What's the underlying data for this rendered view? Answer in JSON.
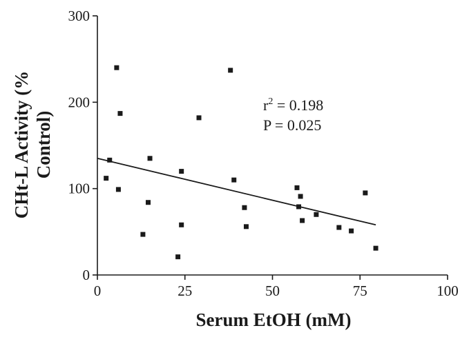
{
  "chart_data": {
    "type": "scatter",
    "xlabel": "Serum EtOH (mM)",
    "ylabel_lines": [
      "CHt-L Activity (%",
      "Control)"
    ],
    "xlim": [
      0,
      100
    ],
    "ylim": [
      0,
      300
    ],
    "xticks": [
      0,
      25,
      50,
      75,
      100
    ],
    "yticks": [
      0,
      100,
      200,
      300
    ],
    "grid": false,
    "series": [
      {
        "points": [
          [
            2.5,
            112
          ],
          [
            3.5,
            133
          ],
          [
            5.5,
            240
          ],
          [
            6.0,
            99
          ],
          [
            6.5,
            187
          ],
          [
            13.0,
            47
          ],
          [
            14.5,
            84
          ],
          [
            15.0,
            135
          ],
          [
            23.0,
            21
          ],
          [
            24.0,
            58
          ],
          [
            24.0,
            120
          ],
          [
            29.0,
            182
          ],
          [
            38.0,
            237
          ],
          [
            39.0,
            110
          ],
          [
            42.0,
            78
          ],
          [
            42.5,
            56
          ],
          [
            57.0,
            101
          ],
          [
            57.5,
            79
          ],
          [
            58.0,
            91
          ],
          [
            58.5,
            63
          ],
          [
            62.5,
            70
          ],
          [
            69.0,
            55
          ],
          [
            72.5,
            51
          ],
          [
            76.5,
            95
          ],
          [
            79.5,
            31
          ]
        ]
      }
    ],
    "trendline": {
      "x": [
        0,
        79.5
      ],
      "y": [
        135,
        58
      ]
    },
    "annotation": {
      "r_label": "r",
      "r_sup": "2",
      "r_value": " = 0.198",
      "p_text": "P = 0.025"
    },
    "colors": {
      "marks": "#1a1a1a",
      "axis": "#1a1a1a"
    }
  }
}
